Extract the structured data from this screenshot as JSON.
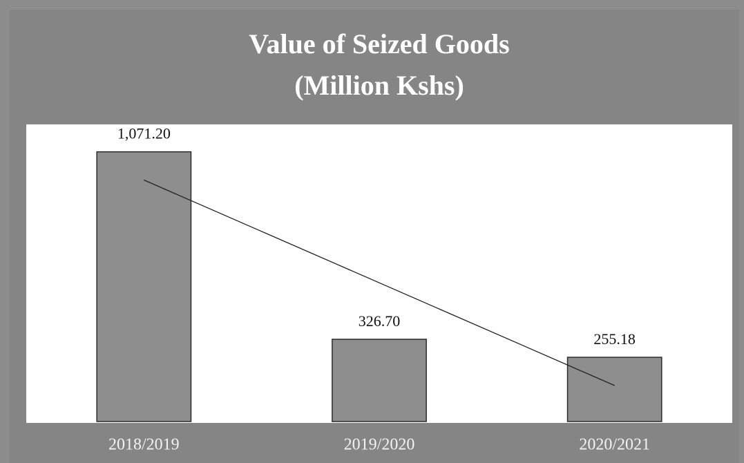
{
  "chart_data": {
    "type": "bar",
    "title": "Value of Seized Goods",
    "subtitle": "(Million Kshs)",
    "categories": [
      "2018/2019",
      "2019/2020",
      "2020/2021"
    ],
    "values": [
      1071.2,
      326.7,
      255.18
    ],
    "value_labels": [
      "1,071.20",
      "326.70",
      "255.18"
    ],
    "color": "#8e8e8e",
    "ylim": [
      0,
      1180
    ],
    "trendline": true
  }
}
